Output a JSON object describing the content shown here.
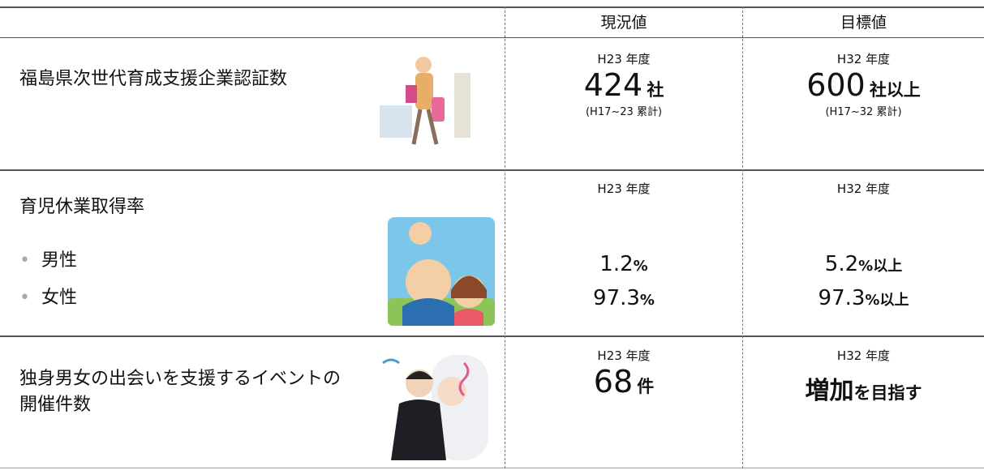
{
  "table": {
    "header": [
      "現況値",
      "目標値"
    ],
    "rows": [
      {
        "label": "福島県次世代育成支援企業認証数",
        "current": {
          "year": "H23 年度",
          "value": "424",
          "unit": "社",
          "note": "(H17~23 累計)"
        },
        "target": {
          "year": "H32 年度",
          "value": "600",
          "unit": "社以上",
          "note": "(H17~32 累計)"
        }
      },
      {
        "label": "育児休業取得率",
        "items": [
          "男性",
          "女性"
        ],
        "current": {
          "year": "H23 年度",
          "values": [
            {
              "value": "1.2",
              "unit": "%"
            },
            {
              "value": "97.3",
              "unit": "%"
            }
          ]
        },
        "target": {
          "year": "H32 年度",
          "values": [
            {
              "value": "5.2",
              "unit": "%以上"
            },
            {
              "value": "97.3",
              "unit": "%以上"
            }
          ]
        }
      },
      {
        "label": "独身男女の出会いを支援するイベントの開催件数",
        "current": {
          "year": "H23 年度",
          "value": "68",
          "unit": "件"
        },
        "target": {
          "year": "H32 年度",
          "value": "増加",
          "unit": "を目指す"
        }
      }
    ]
  }
}
